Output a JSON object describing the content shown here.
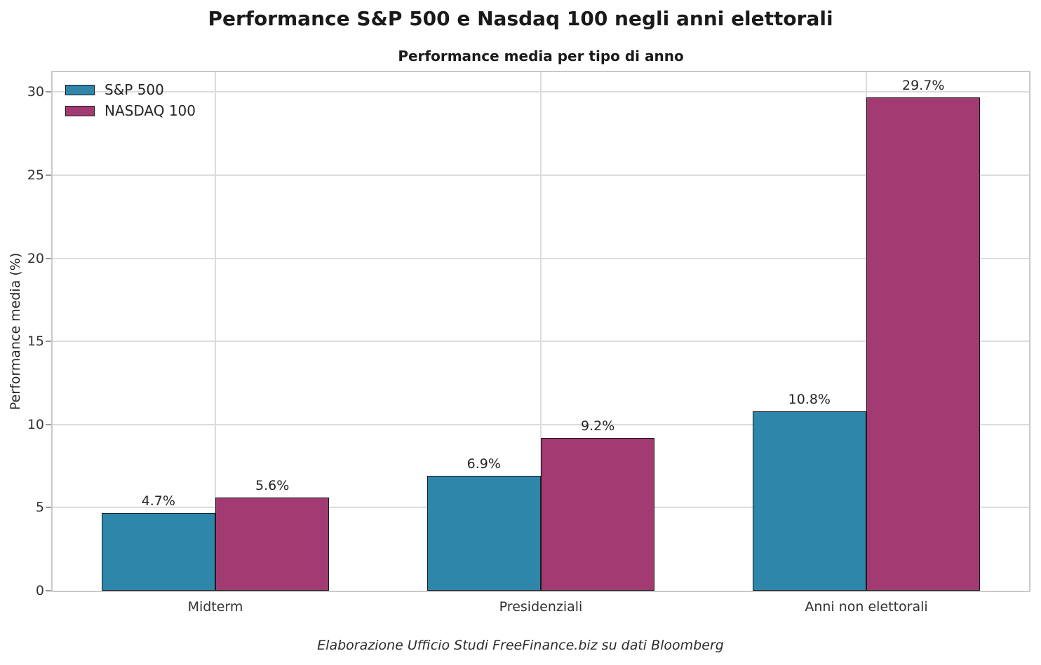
{
  "figure": {
    "title": "Performance S&P 500 e Nasdaq 100 negli anni elettorali",
    "subtitle": "Performance media per tipo di anno",
    "footer": "Elaborazione Ufficio Studi FreeFinance.biz su dati Bloomberg"
  },
  "chart_data": {
    "type": "bar",
    "categories": [
      "Midterm",
      "Presidenziali",
      "Anni non elettorali"
    ],
    "series": [
      {
        "name": "S&P 500",
        "color": "#2E86AB",
        "values": [
          4.7,
          6.9,
          10.8
        ],
        "labels": [
          "4.7%",
          "6.9%",
          "10.8%"
        ]
      },
      {
        "name": "NASDAQ 100",
        "color": "#A23B72",
        "values": [
          5.6,
          9.2,
          29.7
        ],
        "labels": [
          "5.6%",
          "9.2%",
          "29.7%"
        ]
      }
    ],
    "ylabel": "Performance media (%)",
    "xlabel": "",
    "yticks": [
      0,
      5,
      10,
      15,
      20,
      25,
      30
    ],
    "ylim": [
      0,
      31.2
    ],
    "grid": true,
    "legend_position": "upper-left",
    "bar_edge_color": "#1a1a1a",
    "grid_color": "#dcdcdc"
  }
}
